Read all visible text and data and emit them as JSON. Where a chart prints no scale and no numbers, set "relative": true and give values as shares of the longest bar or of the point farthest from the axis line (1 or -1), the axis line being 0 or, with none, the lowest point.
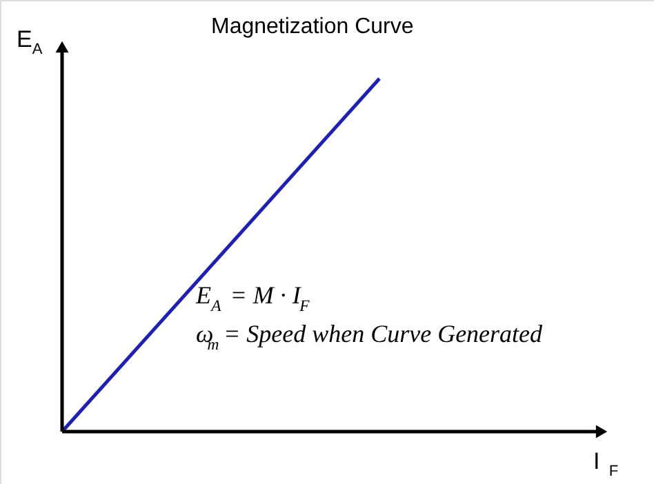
{
  "chart_data": {
    "type": "line",
    "title": "Magnetization Curve",
    "xlabel": "I$_{F}$",
    "ylabel": "E$_{A}$",
    "categories": [
      null,
      null
    ],
    "relative": true,
    "marker": "none",
    "line_style": "solid",
    "series": [
      {
        "color": "#2020b0",
        "values": [
          0,
          1
        ]
      }
    ],
    "annotations": [
      "E$_{A}$ = M · I$_{F}$",
      "ω$_{m}$ = Speed when Curve Generated"
    ]
  }
}
